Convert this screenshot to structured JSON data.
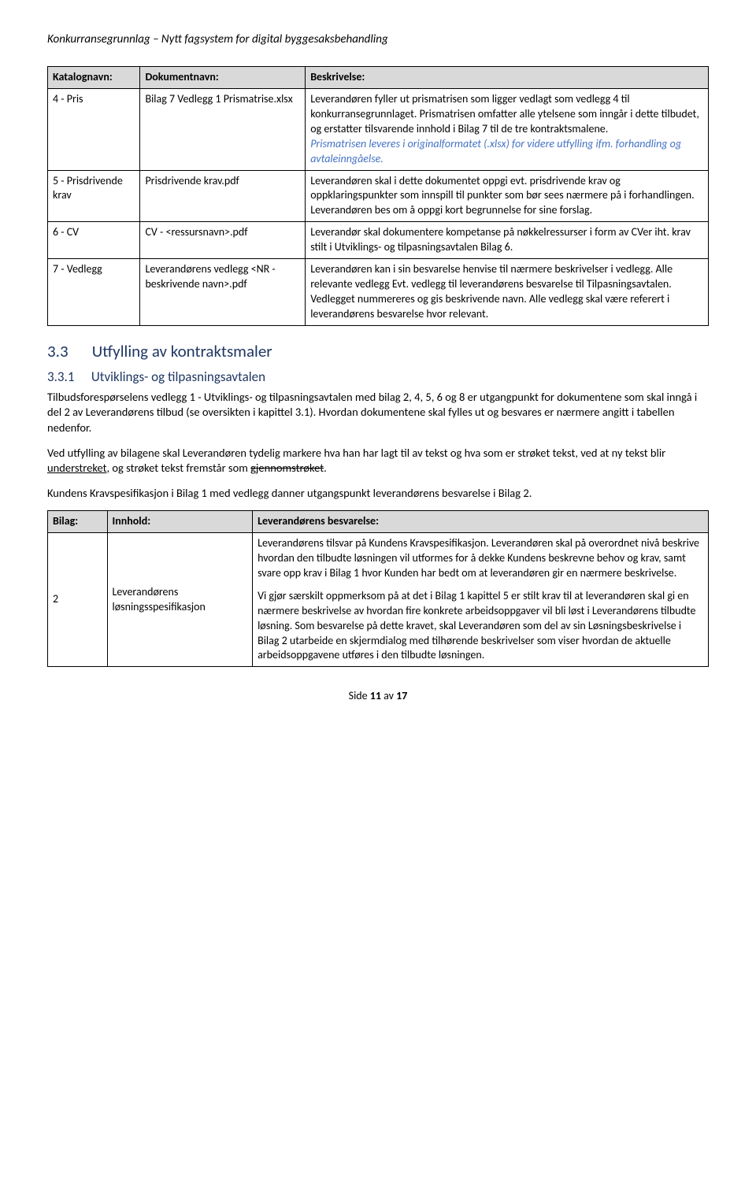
{
  "header": {
    "title": "Konkurransegrunnlag – Nytt fagsystem for digital byggesaksbehandling"
  },
  "table1": {
    "headers": {
      "c1": "Katalognavn:",
      "c2": "Dokumentnavn:",
      "c3": "Beskrivelse:"
    },
    "rows": [
      {
        "c1": "4 - Pris",
        "c2": "Bilag 7 Vedlegg 1 Prismatrise.xlsx",
        "c3a": "Leverandøren fyller ut prismatrisen som ligger vedlagt som vedlegg 4 til konkurransegrunnlaget. Prismatrisen omfatter alle ytelsene som inngår i dette tilbudet, og erstatter tilsvarende innhold i Bilag 7 til de tre kontraktsmalene.",
        "c3b": "Prismatrisen leveres i originalformatet (.xlsx) for videre utfylling ifm. forhandling og avtaleinngåelse."
      },
      {
        "c1": "5 - Prisdrivende krav",
        "c2": "Prisdrivende krav.pdf",
        "c3": "Leverandøren skal i dette dokumentet oppgi evt. prisdrivende krav og oppklaringspunkter som innspill til punkter som bør sees nærmere på i forhandlingen. Leverandøren bes om å oppgi kort begrunnelse for sine forslag."
      },
      {
        "c1": "6 - CV",
        "c2": "CV - <ressursnavn>.pdf",
        "c3": "Leverandør skal dokumentere kompetanse på nøkkelressurser i form av CVer iht. krav stilt i Utviklings- og tilpasningsavtalen Bilag 6."
      },
      {
        "c1": "7 - Vedlegg",
        "c2": "Leverandørens vedlegg <NR - beskrivende navn>.pdf",
        "c3": "Leverandøren kan i sin besvarelse henvise til nærmere beskrivelser i vedlegg. Alle relevante vedlegg Evt. vedlegg til leverandørens besvarelse til Tilpasningsavtalen. Vedlegget nummereres og gis beskrivende navn. Alle vedlegg skal være referert i leverandørens besvarelse hvor relevant."
      }
    ]
  },
  "section": {
    "h2num": "3.3",
    "h2text": "Utfylling av kontraktsmaler",
    "h3num": "3.3.1",
    "h3text": "Utviklings- og tilpasningsavtalen",
    "p1": "Tilbudsforespørselens vedlegg 1 - Utviklings- og tilpasningsavtalen med bilag 2, 4, 5, 6 og 8 er utgangpunkt for dokumentene som skal inngå i del 2 av Leverandørens tilbud (se oversikten i kapittel 3.1). Hvordan dokumentene skal fylles ut og besvares er nærmere angitt i tabellen nedenfor.",
    "p2a": "Ved utfylling av bilagene skal Leverandøren tydelig markere hva han har lagt til av tekst og hva som er strøket tekst, ved at ny tekst blir ",
    "p2u": "understreket",
    "p2b": ", og strøket tekst fremstår som ",
    "p2s": "gjennomstrøket",
    "p2c": ".",
    "p3": "Kundens Kravspesifikasjon i Bilag 1 med vedlegg danner utgangspunkt leverandørens besvarelse i Bilag 2."
  },
  "table2": {
    "headers": {
      "c1": "Bilag:",
      "c2": "Innhold:",
      "c3": "Leverandørens besvarelse:"
    },
    "row": {
      "c1": "2",
      "c2": "Leverandørens løsningsspesifikasjon",
      "c3a": "Leverandørens tilsvar på Kundens Kravspesifikasjon. Leverandøren skal på overordnet nivå beskrive hvordan den tilbudte løsningen vil utformes for å dekke Kundens beskrevne behov og krav, samt svare opp krav i Bilag 1 hvor Kunden har bedt om at leverandøren gir en nærmere beskrivelse.",
      "c3b": "Vi gjør særskilt oppmerksom på at det i Bilag 1 kapittel 5 er stilt krav til at leverandøren skal gi en nærmere beskrivelse av hvordan fire konkrete arbeidsoppgaver vil bli løst i Leverandørens tilbudte løsning. Som besvarelse på dette kravet, skal Leverandøren som del av sin Løsningsbeskrivelse i Bilag 2 utarbeide en skjermdialog med tilhørende beskrivelser som viser hvordan de aktuelle arbeidsoppgavene utføres i den tilbudte løsningen."
    }
  },
  "footer": {
    "a": "Side ",
    "b": "11",
    "c": " av ",
    "d": "17"
  }
}
